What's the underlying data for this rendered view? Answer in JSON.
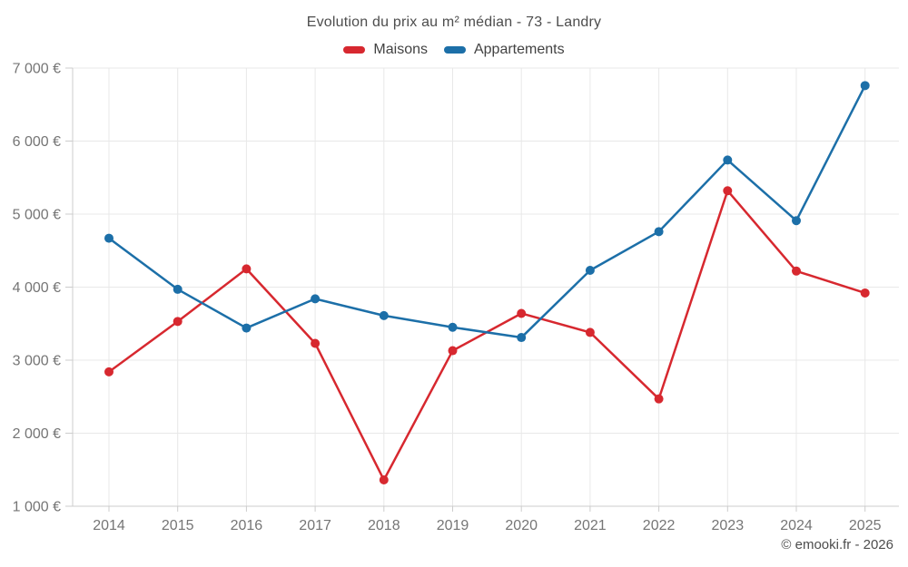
{
  "chart_data": {
    "type": "line",
    "title": "Evolution du prix au m² médian - 73 - Landry",
    "categories": [
      "2014",
      "2015",
      "2016",
      "2017",
      "2018",
      "2019",
      "2020",
      "2021",
      "2022",
      "2023",
      "2024",
      "2025"
    ],
    "series": [
      {
        "name": "Maisons",
        "color": "#d7282f",
        "values": [
          2840,
          3530,
          4250,
          3230,
          1360,
          3130,
          3640,
          3380,
          2470,
          5320,
          4220,
          3920
        ]
      },
      {
        "name": "Appartements",
        "color": "#1c6fa8",
        "values": [
          4670,
          3970,
          3440,
          3840,
          3610,
          3450,
          3310,
          4230,
          4760,
          5740,
          4910,
          6760
        ]
      }
    ],
    "xlabel": "",
    "ylabel": "",
    "ylim": [
      1000,
      7000
    ],
    "y_ticks": [
      1000,
      2000,
      3000,
      4000,
      5000,
      6000,
      7000
    ],
    "y_tick_labels": [
      "1 000 €",
      "2 000 €",
      "3 000 €",
      "4 000 €",
      "5 000 €",
      "6 000 €",
      "7 000 €"
    ],
    "grid": true,
    "legend_position": "top"
  },
  "colors": {
    "grid_line": "#e8e8e8",
    "axis_line": "#cccccc",
    "tick_label": "#757575"
  },
  "footer": {
    "copyright": "© emooki.fr - 2026"
  }
}
